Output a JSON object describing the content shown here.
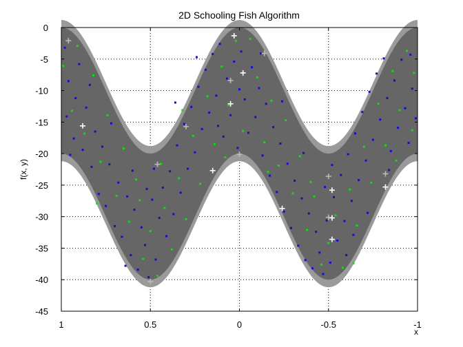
{
  "chart_data": {
    "type": "scatter",
    "title": "2D Schooling Fish Algorithm",
    "xlabel": "x",
    "ylabel": "f(x, y)",
    "xlim": [
      1,
      -1
    ],
    "ylim": [
      -45,
      0
    ],
    "x_reversed": true,
    "grid": true,
    "grid_style": "dotted",
    "x_ticks": [
      1,
      0.5,
      0,
      -0.5,
      -1
    ],
    "x_tick_labels": [
      "1",
      "0.5",
      "0",
      "-0.5",
      "-1"
    ],
    "y_ticks": [
      0,
      -5,
      -10,
      -15,
      -20,
      -25,
      -30,
      -35,
      -40,
      -45
    ],
    "y_tick_labels": [
      "0",
      "-5",
      "-10",
      "-15",
      "-20",
      "-25",
      "-30",
      "-35",
      "-40",
      "-45"
    ],
    "surface": {
      "description_of_curve": "upper = -10 + 10*cos(2*pi*x) offset, band width 20",
      "upper_values_at_x": {
        "x": [
          1,
          0.5,
          0,
          -0.5,
          -1
        ],
        "y": [
          0,
          -20,
          0,
          -20,
          0
        ]
      },
      "lower_values_at_x": {
        "x": [
          1,
          0.5,
          0,
          -0.5,
          -1
        ],
        "y": [
          -20,
          -40,
          -20,
          -40,
          -20
        ]
      },
      "fill_color": "#666666",
      "edge_color": "#9a9a9a"
    },
    "series": [
      {
        "color": "#1010cc",
        "marker": "dot",
        "points": [
          [
            0.98,
            -3.2
          ],
          [
            0.96,
            -8.5
          ],
          [
            0.97,
            -14.1
          ],
          [
            0.93,
            -17.6
          ],
          [
            0.92,
            -11.2
          ],
          [
            0.9,
            -5.8
          ],
          [
            0.88,
            -19.4
          ],
          [
            0.86,
            -12.7
          ],
          [
            0.83,
            -22.1
          ],
          [
            0.81,
            -16.5
          ],
          [
            0.79,
            -26.4
          ],
          [
            0.77,
            -18.9
          ],
          [
            0.75,
            -28.3
          ],
          [
            0.73,
            -21.7
          ],
          [
            0.7,
            -31.5
          ],
          [
            0.68,
            -24.6
          ],
          [
            0.66,
            -33.2
          ],
          [
            0.63,
            -26.8
          ],
          [
            0.61,
            -36.1
          ],
          [
            0.59,
            -28.9
          ],
          [
            0.57,
            -38.4
          ],
          [
            0.55,
            -31.7
          ],
          [
            0.53,
            -34.5
          ],
          [
            0.51,
            -39.6
          ],
          [
            0.49,
            -27.3
          ],
          [
            0.47,
            -36.8
          ],
          [
            0.45,
            -30.2
          ],
          [
            0.43,
            -25.4
          ],
          [
            0.41,
            -33.1
          ],
          [
            0.39,
            -22.8
          ],
          [
            0.37,
            -29.6
          ],
          [
            0.35,
            -18.7
          ],
          [
            0.33,
            -26.2
          ],
          [
            0.31,
            -15.3
          ],
          [
            0.29,
            -22.4
          ],
          [
            0.27,
            -12.6
          ],
          [
            0.25,
            -19.8
          ],
          [
            0.23,
            -9.4
          ],
          [
            0.21,
            -16.1
          ],
          [
            0.19,
            -6.7
          ],
          [
            0.17,
            -13.5
          ],
          [
            0.15,
            -4.2
          ],
          [
            0.13,
            -10.8
          ],
          [
            0.11,
            -2.6
          ],
          [
            0.09,
            -17.3
          ],
          [
            0.07,
            -8.1
          ],
          [
            0.05,
            -13.9
          ],
          [
            0.03,
            -5.4
          ],
          [
            0.01,
            -19.1
          ],
          [
            -0.01,
            -3.8
          ],
          [
            -0.03,
            -11.4
          ],
          [
            -0.05,
            -16.7
          ],
          [
            -0.07,
            -6.3
          ],
          [
            -0.09,
            -14.2
          ],
          [
            -0.11,
            -9.6
          ],
          [
            -0.13,
            -20.3
          ],
          [
            -0.15,
            -12.1
          ],
          [
            -0.17,
            -23.5
          ],
          [
            -0.19,
            -15.8
          ],
          [
            -0.21,
            -26.1
          ],
          [
            -0.23,
            -18.4
          ],
          [
            -0.25,
            -29.2
          ],
          [
            -0.27,
            -21.6
          ],
          [
            -0.29,
            -31.8
          ],
          [
            -0.31,
            -24.3
          ],
          [
            -0.33,
            -34.6
          ],
          [
            -0.35,
            -27.1
          ],
          [
            -0.37,
            -36.9
          ],
          [
            -0.39,
            -29.5
          ],
          [
            -0.41,
            -38.2
          ],
          [
            -0.43,
            -32.4
          ],
          [
            -0.45,
            -35.7
          ],
          [
            -0.47,
            -39.1
          ],
          [
            -0.49,
            -30.6
          ],
          [
            -0.51,
            -37.3
          ],
          [
            -0.53,
            -26.9
          ],
          [
            -0.55,
            -33.8
          ],
          [
            -0.57,
            -23.4
          ],
          [
            -0.59,
            -30.7
          ],
          [
            -0.61,
            -20.1
          ],
          [
            -0.63,
            -27.5
          ],
          [
            -0.65,
            -16.8
          ],
          [
            -0.67,
            -24.2
          ],
          [
            -0.69,
            -13.4
          ],
          [
            -0.71,
            -21.1
          ],
          [
            -0.73,
            -10.2
          ],
          [
            -0.75,
            -17.8
          ],
          [
            -0.77,
            -7.3
          ],
          [
            -0.79,
            -14.6
          ],
          [
            -0.81,
            -4.9
          ],
          [
            -0.83,
            -11.2
          ],
          [
            -0.85,
            -19.6
          ],
          [
            -0.87,
            -8.4
          ],
          [
            -0.89,
            -15.9
          ],
          [
            -0.91,
            -5.1
          ],
          [
            -0.93,
            -12.8
          ],
          [
            -0.95,
            -18.3
          ],
          [
            -0.97,
            -9.7
          ],
          [
            -0.99,
            -14.4
          ],
          [
            0.95,
            -20.2
          ],
          [
            0.84,
            -9.1
          ],
          [
            0.72,
            -15.2
          ],
          [
            0.6,
            -22.7
          ],
          [
            0.48,
            -22.4
          ],
          [
            0.36,
            -11.9
          ],
          [
            0.24,
            -4.7
          ],
          [
            0.12,
            -15.6
          ],
          [
            0.0,
            -9.8
          ],
          [
            -0.12,
            -4.1
          ],
          [
            -0.24,
            -11.7
          ],
          [
            -0.36,
            -19.9
          ],
          [
            -0.48,
            -25.3
          ],
          [
            -0.6,
            -36.1
          ],
          [
            -0.72,
            -29.4
          ],
          [
            -0.84,
            -22.6
          ],
          [
            -0.96,
            -4.3
          ],
          [
            0.64,
            -37.8
          ],
          [
            0.52,
            -25.6
          ],
          [
            -0.52,
            -21.8
          ],
          [
            -0.64,
            -32.9
          ]
        ]
      },
      {
        "color": "#10dd10",
        "marker": "dot",
        "points": [
          [
            0.99,
            -6.1
          ],
          [
            0.94,
            -13.2
          ],
          [
            0.91,
            -2.9
          ],
          [
            0.87,
            -16.8
          ],
          [
            0.82,
            -7.6
          ],
          [
            0.78,
            -21.3
          ],
          [
            0.74,
            -13.9
          ],
          [
            0.69,
            -26.7
          ],
          [
            0.65,
            -19.2
          ],
          [
            0.62,
            -30.8
          ],
          [
            0.58,
            -24.1
          ],
          [
            0.54,
            -36.7
          ],
          [
            0.5,
            -32.3
          ],
          [
            0.46,
            -39.4
          ],
          [
            0.42,
            -28.6
          ],
          [
            0.38,
            -35.2
          ],
          [
            0.34,
            -23.9
          ],
          [
            0.3,
            -30.4
          ],
          [
            0.26,
            -17.2
          ],
          [
            0.22,
            -24.8
          ],
          [
            0.18,
            -10.9
          ],
          [
            0.14,
            -18.5
          ],
          [
            0.1,
            -6.2
          ],
          [
            0.06,
            -12.3
          ],
          [
            0.02,
            -2.1
          ],
          [
            -0.02,
            -16.4
          ],
          [
            -0.06,
            -1.8
          ],
          [
            -0.1,
            -7.9
          ],
          [
            -0.14,
            -18.2
          ],
          [
            -0.18,
            -11.6
          ],
          [
            -0.22,
            -21.9
          ],
          [
            -0.26,
            -14.7
          ],
          [
            -0.3,
            -26.3
          ],
          [
            -0.34,
            -20.4
          ],
          [
            -0.38,
            -32.1
          ],
          [
            -0.42,
            -26.8
          ],
          [
            -0.46,
            -37.6
          ],
          [
            -0.5,
            -34.2
          ],
          [
            -0.54,
            -29.8
          ],
          [
            -0.58,
            -38.1
          ],
          [
            -0.62,
            -25.7
          ],
          [
            -0.66,
            -31.4
          ],
          [
            -0.7,
            -18.9
          ],
          [
            -0.74,
            -24.6
          ],
          [
            -0.78,
            -12.1
          ],
          [
            -0.82,
            -18.7
          ],
          [
            -0.86,
            -6.9
          ],
          [
            -0.9,
            -13.1
          ],
          [
            -0.94,
            -3.7
          ],
          [
            -0.98,
            -7.2
          ],
          [
            0.8,
            -27.9
          ],
          [
            0.56,
            -27.4
          ],
          [
            0.32,
            -13.1
          ],
          [
            0.08,
            -20.6
          ],
          [
            -0.16,
            -22.9
          ],
          [
            -0.4,
            -24.5
          ],
          [
            -0.64,
            -37.4
          ],
          [
            -0.88,
            -21.1
          ],
          [
            -0.97,
            -16.3
          ],
          [
            0.44,
            -21.6
          ]
        ]
      },
      {
        "color": "#ffffff",
        "marker": "plus",
        "points": [
          [
            0.03,
            -1.3
          ],
          [
            -0.02,
            -7.2
          ],
          [
            0.05,
            -12.1
          ],
          [
            -0.52,
            -25.8
          ],
          [
            -0.52,
            -30.2
          ],
          [
            -0.52,
            -33.6
          ],
          [
            0.15,
            -22.7
          ],
          [
            -0.82,
            -25.3
          ],
          [
            0.88,
            -15.6
          ],
          [
            -0.24,
            -28.7
          ]
        ]
      },
      {
        "color": "#bbbbbb",
        "marker": "plus",
        "points": [
          [
            0.96,
            -2.1
          ],
          [
            0.05,
            -8.4
          ],
          [
            -0.14,
            -4.1
          ],
          [
            0.0,
            -20.1
          ],
          [
            0.46,
            -21.7
          ],
          [
            0.3,
            -15.7
          ],
          [
            -0.5,
            -23.6
          ],
          [
            -0.5,
            -30.1
          ],
          [
            0.5,
            -40.3
          ],
          [
            -0.82,
            -23.2
          ]
        ]
      }
    ]
  }
}
